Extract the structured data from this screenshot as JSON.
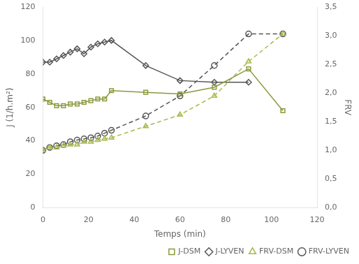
{
  "chart_data": {
    "type": "line",
    "xlabel": "Temps (min)",
    "ylabel": "J (1/h.m²)",
    "y2label": "FRV",
    "xlim": [
      0,
      120
    ],
    "xticks": [
      0,
      20,
      40,
      60,
      80,
      100,
      120
    ],
    "ylim": [
      0,
      120
    ],
    "yticks": [
      0,
      20,
      40,
      60,
      80,
      100,
      120
    ],
    "y2lim": [
      0.0,
      3.5
    ],
    "y2ticks": [
      {
        "value": 0.0,
        "label": "0,0"
      },
      {
        "value": 0.5,
        "label": "0,5"
      },
      {
        "value": 1.0,
        "label": "1,0"
      },
      {
        "value": 1.5,
        "label": "1,5"
      },
      {
        "value": 2.0,
        "label": "2,0"
      },
      {
        "value": 2.5,
        "label": "2,5"
      },
      {
        "value": 3.0,
        "label": "3,0"
      },
      {
        "value": 3.5,
        "label": "3,5"
      }
    ],
    "grid": false,
    "legend": "lower right",
    "series": [
      {
        "name": "J-DSM",
        "color": "#8a9a3a",
        "marker": "square",
        "line_style": "solid",
        "x": [
          0,
          3,
          6,
          9,
          12,
          15,
          18,
          21,
          24,
          27,
          30,
          45,
          60,
          75,
          90,
          105
        ],
        "values": [
          65,
          63,
          61,
          61,
          62,
          62,
          63,
          64,
          65,
          65,
          70,
          69,
          68,
          72,
          83,
          58
        ]
      },
      {
        "name": "J-LYVEN",
        "color": "#555555",
        "marker": "diamond",
        "line_style": "solid",
        "x": [
          0,
          3,
          6,
          9,
          12,
          15,
          18,
          21,
          24,
          27,
          30,
          45,
          60,
          75,
          90
        ],
        "values": [
          87,
          87,
          89,
          91,
          93,
          95,
          92,
          96,
          98,
          99,
          100,
          85,
          76,
          75,
          75
        ]
      },
      {
        "name": "FRV-DSM",
        "color": "#a8b84a",
        "marker": "triangle",
        "line_style": "dashed",
        "axis": "y2",
        "x": [
          0,
          3,
          6,
          9,
          12,
          15,
          18,
          21,
          24,
          27,
          30,
          45,
          60,
          75,
          90,
          105
        ],
        "values": [
          1.0,
          1.05,
          1.05,
          1.08,
          1.1,
          1.1,
          1.15,
          1.15,
          1.18,
          1.2,
          1.22,
          1.42,
          1.62,
          1.95,
          2.55,
          3.03
        ]
      },
      {
        "name": "FRV-LYVEN",
        "color": "#555555",
        "marker": "circle",
        "line_style": "dashed",
        "axis": "y2",
        "x": [
          0,
          3,
          6,
          9,
          12,
          15,
          18,
          21,
          24,
          27,
          30,
          45,
          60,
          75,
          90,
          105
        ],
        "values": [
          1.0,
          1.05,
          1.08,
          1.1,
          1.15,
          1.18,
          1.2,
          1.22,
          1.25,
          1.3,
          1.35,
          1.6,
          1.95,
          2.48,
          3.03,
          3.03
        ]
      }
    ]
  }
}
